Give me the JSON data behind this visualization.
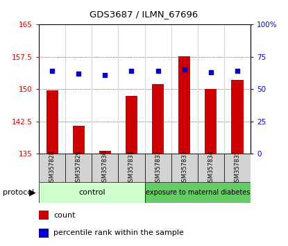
{
  "title": "GDS3687 / ILMN_67696",
  "samples": [
    "GSM357828",
    "GSM357829",
    "GSM357830",
    "GSM357831",
    "GSM357832",
    "GSM357833",
    "GSM357834",
    "GSM357835"
  ],
  "red_values": [
    149.8,
    141.5,
    135.7,
    148.5,
    151.2,
    157.7,
    150.0,
    152.2
  ],
  "blue_values": [
    64,
    62,
    61,
    64,
    64,
    65,
    63,
    64
  ],
  "left_ylim": [
    135,
    165
  ],
  "right_ylim": [
    0,
    100
  ],
  "left_yticks": [
    135,
    142.5,
    150,
    157.5,
    165
  ],
  "right_yticks": [
    0,
    25,
    50,
    75,
    100
  ],
  "right_yticklabels": [
    "0",
    "25",
    "50",
    "75",
    "100%"
  ],
  "left_yticklabels": [
    "135",
    "142.5",
    "150",
    "157.5",
    "165"
  ],
  "bar_color": "#cc0000",
  "dot_color": "#0000cc",
  "control_color": "#ccffcc",
  "exposure_color": "#66cc66",
  "background_color": "#ffffff",
  "bar_width": 0.45,
  "figsize": [
    4.15,
    3.54
  ],
  "dpi": 100
}
